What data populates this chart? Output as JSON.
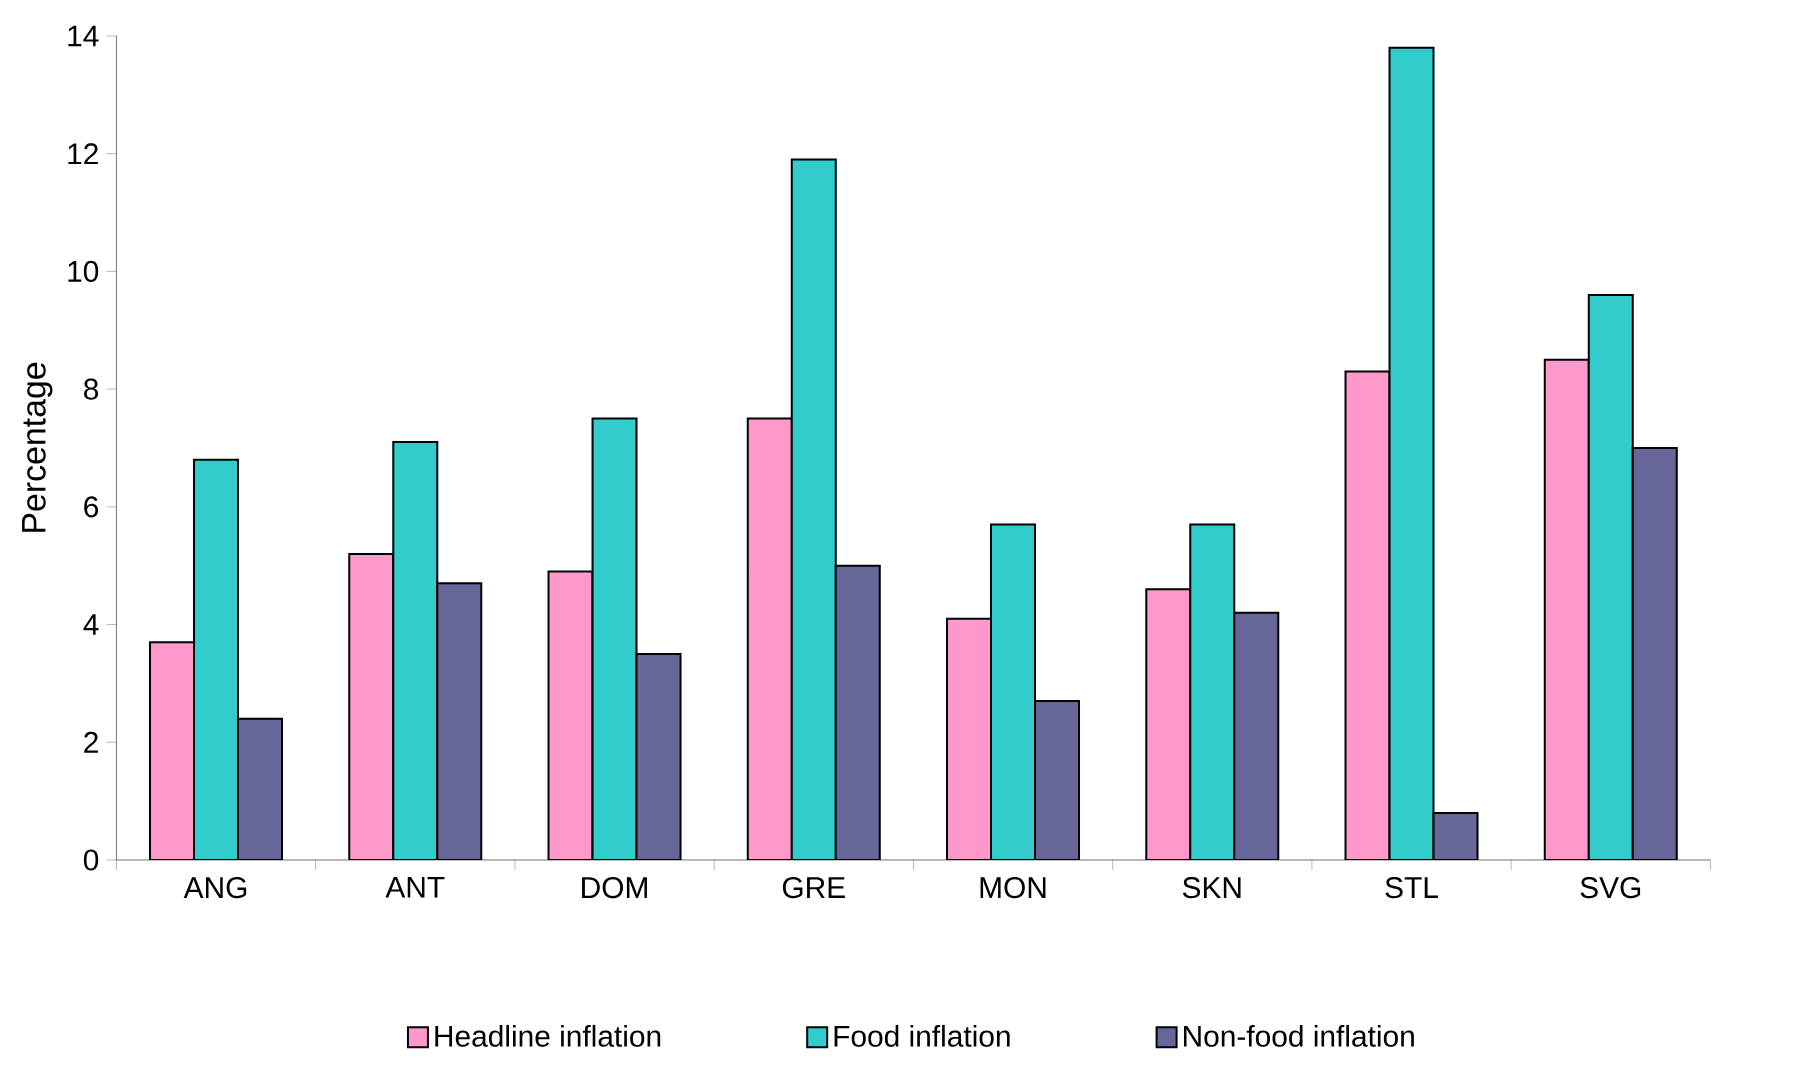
{
  "chart_data": {
    "type": "bar",
    "ylabel": "Percentage",
    "categories": [
      "ANG",
      "ANT",
      "DOM",
      "GRE",
      "MON",
      "SKN",
      "STL",
      "SVG"
    ],
    "series": [
      {
        "name": "Headline inflation",
        "color": "#ff99cc",
        "values": [
          3.7,
          5.2,
          4.9,
          7.5,
          4.1,
          4.6,
          8.3,
          8.5
        ]
      },
      {
        "name": "Food inflation",
        "color": "#33cccc",
        "values": [
          6.8,
          7.1,
          7.5,
          11.9,
          5.7,
          5.7,
          13.8,
          9.6
        ]
      },
      {
        "name": "Non-food inflation",
        "color": "#666699",
        "values": [
          2.4,
          4.7,
          3.5,
          5.0,
          2.7,
          4.2,
          0.8,
          7.0
        ]
      }
    ],
    "ylim": [
      0,
      14
    ],
    "yticks": [
      0,
      2,
      4,
      6,
      8,
      10,
      12,
      14
    ],
    "grid": false,
    "legend": "bottom"
  }
}
